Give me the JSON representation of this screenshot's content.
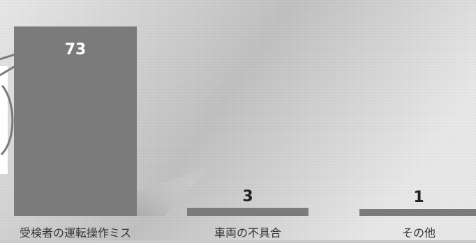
{
  "chart_data": {
    "type": "bar",
    "categories": [
      "受検者の運転操作ミス",
      "車両の不具合",
      "その他"
    ],
    "values": [
      73,
      3,
      1
    ],
    "data_labels": [
      "73",
      "3",
      "1"
    ],
    "ylim": [
      0,
      80
    ],
    "grid": false,
    "legend": "none"
  },
  "colors": {
    "bar": "#7b7b7b",
    "bar_label_on_bar": "#ffffff",
    "bar_label_above": "#222222",
    "category_label": "#333333",
    "background_light": "#e7e7e7",
    "background_dark": "#bfbfbf",
    "callout_line": "#7a7a7a",
    "shadow": "#a9a9a9"
  }
}
